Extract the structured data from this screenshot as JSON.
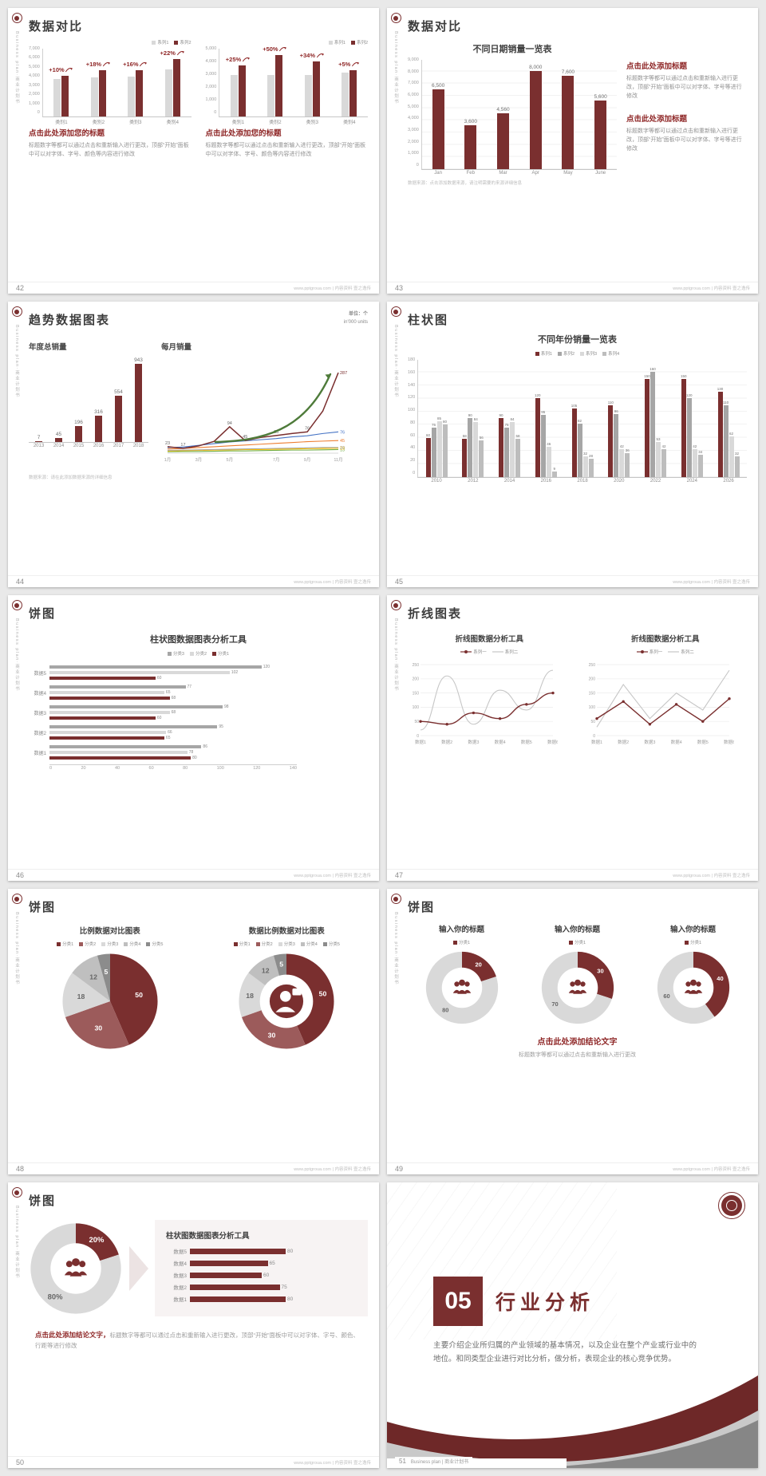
{
  "colors": {
    "maroon": "#7a2f2f",
    "accent_red": "#8f2727",
    "gray_bar": "#d9d9d9",
    "gray_mid": "#a6a6a6",
    "green_arrow": "#4e7b3a",
    "page_bg": "#e9e9e9"
  },
  "common": {
    "vertical_text": "Business plan·商业计划书",
    "footer_site": "www.pptgroua.com | 内容资料 壹之逸传"
  },
  "slides": {
    "s42": {
      "page": "42",
      "title": "数据对比",
      "left": {
        "legend": [
          {
            "label": "系列1",
            "color": "#d9d9d9"
          },
          {
            "label": "系列2",
            "color": "#7a2f2f"
          }
        ],
        "percents": [
          "+10%",
          "+18%",
          "+16%",
          "+22%"
        ],
        "chart": {
          "type": "bar",
          "categories": [
            "类别1",
            "类别2",
            "类别3",
            "类别4"
          ],
          "series": [
            {
              "name": "系列1",
              "color": "#d9d9d9",
              "values": [
                3800,
                4000,
                4100,
                4800
              ]
            },
            {
              "name": "系列2",
              "color": "#7a2f2f",
              "values": [
                4180,
                4720,
                4760,
                5860
              ]
            }
          ],
          "ylim": [
            0,
            7000
          ],
          "yticks": [
            "7,000",
            "6,000",
            "5,000",
            "4,000",
            "3,000",
            "2,000",
            "1,000",
            "0"
          ]
        },
        "heading": "点击此处添加您的标题",
        "body": "标题数字等都可以通过点击和重新输入进行更改，顶部“开始”面板中可以对字体、字号、颜色等内容进行修改"
      },
      "right": {
        "legend": [
          {
            "label": "系列1",
            "color": "#d9d9d9"
          },
          {
            "label": "系列2",
            "color": "#7a2f2f"
          }
        ],
        "percents": [
          "+25%",
          "+50%",
          "+34%",
          "+5%"
        ],
        "chart": {
          "type": "bar",
          "categories": [
            "类别1",
            "类别2",
            "类别3",
            "类别4"
          ],
          "series": [
            {
              "name": "系列1",
              "color": "#d9d9d9",
              "values": [
                3000,
                3000,
                3000,
                3200
              ]
            },
            {
              "name": "系列2",
              "color": "#7a2f2f",
              "values": [
                3750,
                4500,
                4020,
                3360
              ]
            }
          ],
          "ylim": [
            0,
            5000
          ],
          "yticks": [
            "5,000",
            "4,000",
            "3,000",
            "2,000",
            "1,000",
            "0"
          ]
        },
        "heading": "点击此处添加您的标题",
        "body": "标题数字等都可以通过点击和重新输入进行更改，顶部“开始”面板中可以对字体、字号、颜色等内容进行修改"
      }
    },
    "s43": {
      "page": "43",
      "title": "数据对比",
      "chart_title": "不同日期销量一览表",
      "chart": {
        "type": "bar",
        "categories": [
          "Jan",
          "Feb",
          "Mar",
          "Apr",
          "May",
          "June"
        ],
        "series": [
          {
            "name": "销量",
            "color": "#7a2f2f",
            "values": [
              6500,
              3600,
              4560,
              8000,
              7600,
              5600
            ],
            "labels": [
              "6,500",
              "3,600",
              "4,560",
              "8,000",
              "7,600",
              "5,600"
            ]
          }
        ],
        "ylim": [
          0,
          9000
        ],
        "yticks": [
          "9,000",
          "8,000",
          "7,000",
          "6,000",
          "5,000",
          "4,000",
          "3,000",
          "2,000",
          "1,000",
          "0"
        ]
      },
      "blocks": [
        {
          "heading": "点击此处添加标题",
          "body": "标题数字等都可以通过点击和重新输入进行更改，顶部“开始”面板中可以对字体、字号等进行修改"
        },
        {
          "heading": "点击此处添加标题",
          "body": "标题数字等都可以通过点击和重新输入进行更改，顶部“开始”面板中可以对字体、字号等进行修改"
        }
      ],
      "source_note": "数据来源：点击添加数据来源，请注明需要的来源详细信息"
    },
    "s44": {
      "page": "44",
      "title": "趋势数据图表",
      "unit_note": "单位：个",
      "unit_note2": "in'000 units",
      "left_chart_title": "年度总销量",
      "right_chart_title": "每月销量",
      "left_chart": {
        "type": "bar",
        "categories": [
          "2013",
          "2014",
          "2015",
          "2016",
          "2017",
          "2018"
        ],
        "series": [
          {
            "name": "年度总销量",
            "color": "#7a2f2f",
            "values": [
              7,
              45,
              196,
              316,
              554,
              943
            ]
          }
        ],
        "ylim": [
          0,
          1000
        ]
      },
      "right_chart": {
        "type": "line",
        "x_labels": [
          "1月",
          "3月",
          "5月",
          "7月",
          "9月",
          "11月"
        ],
        "ylim": [
          0,
          310
        ],
        "series": [
          {
            "name": "系列1",
            "color": "#7a2f2f",
            "values": [
              23,
              17,
              26,
              42,
              94,
              45,
              56,
              63,
              70,
              76,
              150,
              287
            ],
            "end_label": "287",
            "width": 1.5
          },
          {
            "name": "系列2",
            "color": "#4472c4",
            "values": [
              20,
              22,
              28,
              34,
              40,
              44,
              48,
              52,
              58,
              62,
              70,
              76
            ],
            "end_label": "76"
          },
          {
            "name": "系列3",
            "color": "#ed7d31",
            "values": [
              15,
              17,
              20,
              23,
              26,
              29,
              32,
              35,
              38,
              41,
              43,
              45
            ],
            "end_label": "45"
          },
          {
            "name": "系列4",
            "color": "#a5a5a5",
            "values": [
              10,
              11,
              12,
              13,
              14,
              15,
              16,
              17,
              18,
              19,
              20,
              20
            ],
            "end_label": "20"
          },
          {
            "name": "系列5",
            "color": "#ffc000",
            "values": [
              8,
              9,
              10,
              11,
              12,
              13,
              13,
              14,
              15,
              16,
              17,
              18
            ],
            "end_label": "18"
          },
          {
            "name": "系列6",
            "color": "#70ad47",
            "values": [
              5,
              6,
              6,
              7,
              8,
              8,
              9,
              10,
              11,
              11,
              12,
              13
            ],
            "end_label": "13"
          }
        ],
        "point_labels": [
          [
            0,
            "23"
          ],
          [
            1,
            "17"
          ],
          [
            4,
            "94"
          ],
          [
            5,
            "45"
          ],
          [
            7,
            "63"
          ],
          [
            9,
            "76"
          ]
        ]
      },
      "source_note": "数据来源：请在此添加数据来源的详细信息"
    },
    "s45": {
      "page": "45",
      "title": "柱状图",
      "chart_title": "不同年份销量一览表",
      "legend": [
        {
          "label": "系列1",
          "color": "#7a2f2f"
        },
        {
          "label": "系列2",
          "color": "#a6a6a6"
        },
        {
          "label": "系列3",
          "color": "#d9d9d9"
        },
        {
          "label": "系列4",
          "color": "#bdbdbd"
        }
      ],
      "chart": {
        "type": "bar",
        "categories": [
          "2010",
          "2012",
          "2014",
          "2016",
          "2018",
          "2020",
          "2022",
          "2024",
          "2026"
        ],
        "series": [
          {
            "name": "系列1",
            "color": "#7a2f2f",
            "values": [
              60,
              58,
              90,
              120,
              105,
              110,
              150,
              150,
              130
            ]
          },
          {
            "name": "系列2",
            "color": "#a6a6a6",
            "values": [
              75,
              90,
              75,
              95,
              82,
              96,
              160,
              120,
              110
            ]
          },
          {
            "name": "系列3",
            "color": "#d9d9d9",
            "values": [
              85,
              84,
              84,
              46,
              32,
              42,
              53,
              42,
              62
            ]
          },
          {
            "name": "系列4",
            "color": "#bdbdbd",
            "values": [
              80,
              56,
              58,
              9,
              28,
              36,
              42,
              34,
              32
            ]
          }
        ],
        "ylim": [
          0,
          180
        ],
        "yticks": [
          "180",
          "160",
          "140",
          "120",
          "100",
          "80",
          "60",
          "40",
          "20",
          "0"
        ]
      }
    },
    "s46": {
      "page": "46",
      "title": "饼图",
      "chart_title": "柱状图数据图表分析工具",
      "legend": [
        {
          "label": "分类3",
          "color": "#a6a6a6"
        },
        {
          "label": "分类2",
          "color": "#d9d9d9"
        },
        {
          "label": "分类1",
          "color": "#7a2f2f"
        }
      ],
      "chart": {
        "type": "hbar",
        "categories": [
          "数据5",
          "数据4",
          "数据3",
          "数据2",
          "数据1"
        ],
        "series": [
          {
            "name": "分类3",
            "color": "#a6a6a6",
            "values": [
              120,
              77,
              98,
              95,
              86
            ]
          },
          {
            "name": "分类2",
            "color": "#d9d9d9",
            "values": [
              102,
              65,
              68,
              66,
              78
            ]
          },
          {
            "name": "分类1",
            "color": "#7a2f2f",
            "values": [
              60,
              68,
              60,
              65,
              80
            ]
          }
        ],
        "xlim": [
          0,
          140
        ],
        "xticks": [
          "0",
          "20",
          "40",
          "60",
          "80",
          "100",
          "120",
          "140"
        ]
      }
    },
    "s47": {
      "page": "47",
      "title": "折线图表",
      "charts": [
        {
          "title": "折线图数据分析工具",
          "legend": [
            {
              "label": "系列一",
              "color": "#7a2f2f",
              "marker": true
            },
            {
              "label": "系列二",
              "color": "#c6c6c6"
            }
          ],
          "x_labels": [
            "数据1",
            "数据2",
            "数据3",
            "数据4",
            "数据5",
            "数据6"
          ],
          "ylim": [
            0,
            250
          ],
          "yticks": [
            "250",
            "200",
            "150",
            "100",
            "50",
            "0"
          ],
          "series": [
            {
              "name": "系列一",
              "color": "#7a2f2f",
              "values": [
                50,
                40,
                80,
                60,
                110,
                150
              ],
              "markers": true,
              "width": 1.4
            },
            {
              "name": "系列二",
              "color": "#c6c6c6",
              "values": [
                20,
                210,
                40,
                160,
                90,
                230
              ]
            }
          ]
        },
        {
          "title": "折线图数据分析工具",
          "legend": [
            {
              "label": "系列一",
              "color": "#7a2f2f",
              "marker": true
            },
            {
              "label": "系列二",
              "color": "#c6c6c6"
            }
          ],
          "x_labels": [
            "数据1",
            "数据2",
            "数据3",
            "数据4",
            "数据5",
            "数据6"
          ],
          "ylim": [
            0,
            250
          ],
          "yticks": [
            "250",
            "200",
            "150",
            "100",
            "50",
            "0"
          ],
          "series": [
            {
              "name": "系列一",
              "color": "#7a2f2f",
              "values": [
                60,
                120,
                40,
                110,
                50,
                130
              ],
              "markers": true,
              "width": 1.4
            },
            {
              "name": "系列二",
              "color": "#c6c6c6",
              "values": [
                30,
                180,
                60,
                150,
                90,
                230
              ]
            }
          ]
        }
      ]
    },
    "s48": {
      "page": "48",
      "title": "饼图",
      "left": {
        "title": "比例数据对比图表",
        "legend": [
          {
            "label": "分类1",
            "color": "#7a2f2f"
          },
          {
            "label": "分类2",
            "color": "#9c5b5b"
          },
          {
            "label": "分类3",
            "color": "#d9d9d9"
          },
          {
            "label": "分类4",
            "color": "#bfbfbf"
          },
          {
            "label": "分类5",
            "color": "#8c8c8c"
          }
        ],
        "chart": {
          "type": "pie",
          "values": [
            50,
            30,
            18,
            12,
            5
          ],
          "labels": [
            "50",
            "30",
            "18",
            "12",
            "5"
          ],
          "colors": [
            "#7a2f2f",
            "#9c5b5b",
            "#d9d9d9",
            "#bfbfbf",
            "#8c8c8c"
          ],
          "label_colors": [
            "#ffffff",
            "#ffffff",
            "#666666",
            "#666666",
            "#ffffff"
          ],
          "donut": false
        }
      },
      "right": {
        "title": "数据比例数据对比图表",
        "legend": [
          {
            "label": "分类1",
            "color": "#7a2f2f"
          },
          {
            "label": "分类2",
            "color": "#9c5b5b"
          },
          {
            "label": "分类3",
            "color": "#d9d9d9"
          },
          {
            "label": "分类4",
            "color": "#bfbfbf"
          },
          {
            "label": "分类5",
            "color": "#8c8c8c"
          }
        ],
        "chart": {
          "type": "pie",
          "values": [
            50,
            30,
            18,
            12,
            5
          ],
          "labels": [
            "50",
            "30",
            "18",
            "12",
            "5"
          ],
          "colors": [
            "#7a2f2f",
            "#9c5b5b",
            "#d9d9d9",
            "#bfbfbf",
            "#8c8c8c"
          ],
          "label_colors": [
            "#ffffff",
            "#ffffff",
            "#666666",
            "#666666",
            "#ffffff"
          ],
          "donut": true,
          "center_icon": "person"
        }
      }
    },
    "s49": {
      "page": "49",
      "title": "饼图",
      "columns": [
        {
          "heading": "输入你的标题",
          "legend": [
            {
              "label": "分类1",
              "color": "#7a2f2f"
            }
          ],
          "chart": {
            "type": "pie",
            "values": [
              20,
              80
            ],
            "labels": [
              "20",
              "80"
            ],
            "colors": [
              "#7a2f2f",
              "#d9d9d9"
            ],
            "label_colors": [
              "#ffffff",
              "#666666"
            ],
            "donut": true,
            "center_icon": "people"
          }
        },
        {
          "heading": "输入你的标题",
          "legend": [
            {
              "label": "分类1",
              "color": "#7a2f2f"
            }
          ],
          "chart": {
            "type": "pie",
            "values": [
              30,
              70
            ],
            "labels": [
              "30",
              "70"
            ],
            "colors": [
              "#7a2f2f",
              "#d9d9d9"
            ],
            "label_colors": [
              "#ffffff",
              "#666666"
            ],
            "donut": true,
            "center_icon": "people"
          }
        },
        {
          "heading": "输入你的标题",
          "legend": [
            {
              "label": "分类1",
              "color": "#7a2f2f"
            }
          ],
          "chart": {
            "type": "pie",
            "values": [
              40,
              60
            ],
            "labels": [
              "40",
              "60"
            ],
            "colors": [
              "#7a2f2f",
              "#d9d9d9"
            ],
            "label_colors": [
              "#ffffff",
              "#666666"
            ],
            "donut": true,
            "center_icon": "people"
          }
        }
      ],
      "conclusion": "点击此处添加结论文字",
      "body": "标题数字等都可以通过点击和重新输入进行更改"
    },
    "s50": {
      "page": "50",
      "title": "饼图",
      "donut": {
        "type": "pie",
        "values": [
          20,
          80
        ],
        "labels": [
          "20%",
          "80%"
        ],
        "colors": [
          "#7a2f2f",
          "#d9d9d9"
        ],
        "label_colors": [
          "#ffffff",
          "#666666"
        ],
        "donut": true,
        "center_icon": "people"
      },
      "panel": {
        "title": "柱状图数据图表分析工具",
        "max": 100,
        "rows": [
          {
            "label": "数据5",
            "value": 80
          },
          {
            "label": "数据4",
            "value": 65
          },
          {
            "label": "数据3",
            "value": 60
          },
          {
            "label": "数据2",
            "value": 75
          },
          {
            "label": "数据1",
            "value": 80
          }
        ]
      },
      "conclusion": "点击此处添加结论文字，",
      "body": "标题数字等都可以通过点击和重新输入进行更改，顶部“开始”面板中可以对字体、字号、颜色、行距等进行修改"
    },
    "s51": {
      "page": "51",
      "number": "05",
      "title": "行业分析",
      "body": "主要介绍企业所归属的产业领域的基本情况，以及企业在整个产业或行业中的地位。和同类型企业进行对比分析，做分析，表现企业的核心竞争优势。",
      "footer": "Business plan | 商业计划书"
    }
  }
}
